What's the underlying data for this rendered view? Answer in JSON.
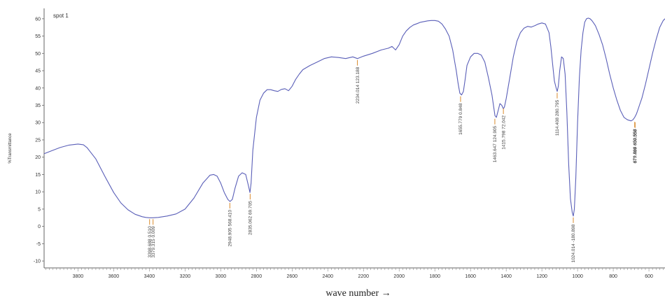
{
  "chart_data": {
    "type": "line",
    "series": [
      {
        "name": "spot 1",
        "x": [
          3990,
          3950,
          3900,
          3850,
          3800,
          3770,
          3750,
          3700,
          3650,
          3600,
          3560,
          3520,
          3480,
          3440,
          3420,
          3400,
          3380,
          3350,
          3300,
          3250,
          3200,
          3150,
          3100,
          3060,
          3040,
          3020,
          3000,
          2980,
          2960,
          2948,
          2935,
          2920,
          2900,
          2880,
          2860,
          2846,
          2836,
          2830,
          2820,
          2800,
          2780,
          2760,
          2740,
          2720,
          2700,
          2680,
          2660,
          2640,
          2620,
          2600,
          2580,
          2560,
          2540,
          2500,
          2460,
          2420,
          2380,
          2340,
          2300,
          2260,
          2234,
          2200,
          2150,
          2100,
          2060,
          2040,
          2020,
          2000,
          1980,
          1960,
          1950,
          1940,
          1920,
          1900,
          1880,
          1860,
          1840,
          1820,
          1800,
          1780,
          1760,
          1740,
          1720,
          1700,
          1690,
          1680,
          1670,
          1660,
          1650,
          1640,
          1630,
          1620,
          1600,
          1580,
          1560,
          1540,
          1520,
          1500,
          1480,
          1470,
          1463,
          1455,
          1445,
          1435,
          1425,
          1416,
          1410,
          1400,
          1380,
          1360,
          1340,
          1320,
          1300,
          1280,
          1260,
          1240,
          1220,
          1200,
          1180,
          1160,
          1150,
          1140,
          1130,
          1120,
          1114,
          1108,
          1100,
          1090,
          1080,
          1070,
          1060,
          1050,
          1040,
          1030,
          1024,
          1018,
          1010,
          1000,
          990,
          980,
          970,
          960,
          950,
          940,
          930,
          920,
          910,
          900,
          880,
          860,
          840,
          820,
          800,
          780,
          760,
          740,
          720,
          700,
          690,
          680,
          670,
          660,
          650,
          640,
          620,
          600,
          580,
          560,
          540,
          520,
          510
        ],
        "y": [
          21.0,
          21.8,
          22.8,
          23.5,
          23.8,
          23.6,
          22.8,
          19.5,
          14.5,
          9.8,
          6.8,
          4.8,
          3.5,
          2.8,
          2.6,
          2.5,
          2.5,
          2.6,
          3.0,
          3.6,
          5.0,
          8.2,
          12.5,
          14.8,
          15.0,
          14.5,
          12.5,
          9.8,
          7.8,
          7.2,
          7.8,
          11.0,
          14.5,
          15.5,
          15.0,
          12.0,
          9.8,
          12.5,
          22.0,
          31.5,
          36.5,
          38.5,
          39.5,
          39.5,
          39.2,
          39.0,
          39.6,
          39.8,
          39.2,
          40.5,
          42.5,
          44.0,
          45.3,
          46.5,
          47.5,
          48.5,
          49.0,
          48.8,
          48.5,
          49.0,
          48.5,
          49.2,
          50.0,
          51.0,
          51.5,
          52.0,
          51.0,
          52.5,
          55.0,
          56.5,
          57.0,
          57.5,
          58.2,
          58.6,
          59.0,
          59.2,
          59.4,
          59.5,
          59.5,
          59.3,
          58.5,
          57.0,
          55.0,
          51.0,
          48.0,
          45.0,
          41.5,
          38.5,
          38.0,
          39.0,
          42.5,
          46.5,
          49.0,
          50.0,
          50.0,
          49.5,
          47.5,
          43.0,
          38.0,
          34.5,
          32.0,
          31.5,
          33.5,
          35.5,
          35.0,
          34.0,
          34.5,
          37.0,
          43.0,
          49.0,
          53.5,
          56.0,
          57.3,
          57.8,
          57.6,
          58.0,
          58.5,
          58.8,
          58.5,
          56.0,
          52.0,
          47.0,
          42.0,
          40.0,
          39.0,
          40.5,
          45.0,
          49.0,
          48.5,
          44.0,
          33.0,
          18.0,
          8.0,
          4.0,
          3.0,
          5.0,
          14.0,
          30.0,
          43.0,
          51.0,
          56.0,
          59.0,
          60.0,
          60.2,
          60.0,
          59.5,
          58.8,
          58.0,
          55.5,
          52.5,
          48.5,
          44.0,
          40.0,
          36.5,
          33.5,
          31.5,
          30.8,
          30.5,
          30.8,
          31.5,
          32.5,
          34.0,
          35.5,
          37.0,
          41.0,
          45.5,
          50.0,
          54.0,
          57.5,
          59.5,
          60.0
        ]
      }
    ],
    "peaks": [
      {
        "label": "3398.688  0.510",
        "x": 3398.688,
        "y": 2.5
      },
      {
        "label": "3379.315  0.009",
        "x": 3379.315,
        "y": 2.5
      },
      {
        "label": "2948.905  568.410",
        "x": 2948.905,
        "y": 7.2
      },
      {
        "label": "2835.062  69.705",
        "x": 2835.062,
        "y": 9.8
      },
      {
        "label": "2234.014  123.188",
        "x": 2234.014,
        "y": 48.5
      },
      {
        "label": "1655.779  0.848",
        "x": 1655.779,
        "y": 38.0
      },
      {
        "label": "1463.647  124.905",
        "x": 1463.647,
        "y": 31.5
      },
      {
        "label": "1415.798  72.042",
        "x": 1415.798,
        "y": 34.5
      },
      {
        "label": "1114.408  280.795",
        "x": 1114.408,
        "y": 39.0
      },
      {
        "label": "1024.014  -180.898",
        "x": 1024.014,
        "y": 3.0
      },
      {
        "label": "679.868  450.558",
        "x": 679.868,
        "y": 30.6
      },
      {
        "label": "677.489  609.558",
        "x": 677.489,
        "y": 30.5
      }
    ],
    "legend": "spot 1",
    "legend_position": "top-left",
    "xlabel": "wave number →",
    "ylabel": "%Transmittance",
    "xlim": [
      3990,
      510
    ],
    "ylim": [
      -12,
      63
    ],
    "x_reversed": true,
    "xticks": [
      3800,
      3600,
      3400,
      3200,
      3000,
      2800,
      2600,
      2400,
      2200,
      2000,
      1800,
      1600,
      1400,
      1200,
      1000,
      800,
      600
    ],
    "yticks": [
      -10,
      -5,
      0,
      5,
      10,
      15,
      20,
      25,
      30,
      35,
      40,
      45,
      50,
      55,
      60
    ],
    "grid": false,
    "colors": {
      "line": "#5a5fb8",
      "peak_marker": "#d98a2b",
      "axis": "#666666",
      "text": "#333333"
    }
  }
}
